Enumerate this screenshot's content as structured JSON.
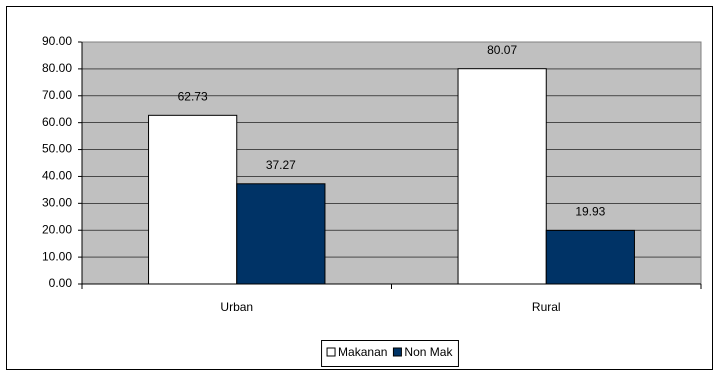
{
  "chart_data": {
    "type": "bar",
    "categories": [
      "Urban",
      "Rural"
    ],
    "series": [
      {
        "name": "Makanan",
        "color": "#ffffff",
        "values": [
          62.73,
          80.07
        ]
      },
      {
        "name": "Non Mak",
        "color": "#003366",
        "values": [
          37.27,
          19.93
        ]
      }
    ],
    "ylim": [
      0,
      90
    ],
    "yticks": [
      {
        "value": 0,
        "label": "0.00"
      },
      {
        "value": 10,
        "label": "10.00"
      },
      {
        "value": 20,
        "label": "20.00"
      },
      {
        "value": 30,
        "label": "30.00"
      },
      {
        "value": 40,
        "label": "40.00"
      },
      {
        "value": 50,
        "label": "50.00"
      },
      {
        "value": 60,
        "label": "60.00"
      },
      {
        "value": 70,
        "label": "70.00"
      },
      {
        "value": 80,
        "label": "80.00"
      },
      {
        "value": 90,
        "label": "90.00"
      }
    ],
    "grid": true,
    "plot_background": "#c0c0c0",
    "legend": "bottom"
  }
}
